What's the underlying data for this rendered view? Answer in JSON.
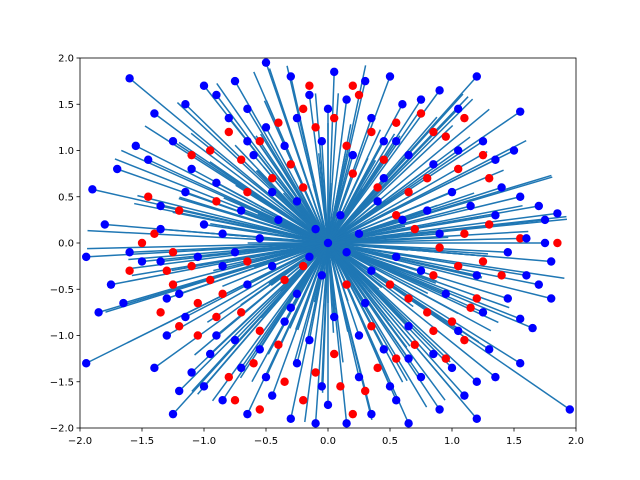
{
  "chart_data": {
    "type": "scatter",
    "title": "",
    "xlabel": "",
    "ylabel": "",
    "xlim": [
      -2.0,
      2.0
    ],
    "ylim": [
      -2.0,
      2.0
    ],
    "grid": false,
    "legend": "none",
    "xticks": [
      "−2.0",
      "−1.5",
      "−1.0",
      "−0.5",
      "0.0",
      "0.5",
      "1.0",
      "1.5",
      "2.0"
    ],
    "yticks": [
      "−2.0",
      "−1.5",
      "−1.0",
      "−0.5",
      "0.0",
      "0.5",
      "1.0",
      "1.5",
      "2.0"
    ],
    "colors": {
      "line": "#1f77b4",
      "red": "#ff0000",
      "blue": "#0000ff",
      "axes": "#000000"
    },
    "red_points": [
      [
        -1.1,
        0.95
      ],
      [
        -0.95,
        1.0
      ],
      [
        -0.8,
        1.2
      ],
      [
        -0.7,
        0.9
      ],
      [
        -0.55,
        1.1
      ],
      [
        -0.4,
        1.3
      ],
      [
        -0.3,
        0.85
      ],
      [
        -0.2,
        1.45
      ],
      [
        -0.1,
        1.25
      ],
      [
        0.05,
        1.35
      ],
      [
        0.15,
        1.05
      ],
      [
        0.25,
        1.6
      ],
      [
        0.35,
        1.2
      ],
      [
        0.45,
        0.9
      ],
      [
        0.55,
        1.3
      ],
      [
        0.75,
        1.4
      ],
      [
        0.85,
        1.2
      ],
      [
        0.95,
        1.15
      ],
      [
        1.1,
        1.35
      ],
      [
        1.25,
        0.95
      ],
      [
        1.3,
        0.7
      ],
      [
        1.05,
        0.8
      ],
      [
        0.8,
        0.7
      ],
      [
        0.65,
        0.55
      ],
      [
        0.4,
        0.6
      ],
      [
        0.2,
        0.75
      ],
      [
        -0.2,
        0.6
      ],
      [
        -0.45,
        0.7
      ],
      [
        -0.65,
        0.55
      ],
      [
        -0.9,
        0.45
      ],
      [
        -1.2,
        0.35
      ],
      [
        -1.4,
        0.1
      ],
      [
        -1.25,
        -0.1
      ],
      [
        -1.1,
        -0.25
      ],
      [
        -0.95,
        -0.4
      ],
      [
        -0.85,
        -0.55
      ],
      [
        -1.05,
        -0.65
      ],
      [
        -1.25,
        -0.45
      ],
      [
        -1.35,
        -0.75
      ],
      [
        -1.2,
        -0.9
      ],
      [
        -1.05,
        -1.0
      ],
      [
        -0.9,
        -0.8
      ],
      [
        -0.7,
        -0.75
      ],
      [
        -0.55,
        -0.95
      ],
      [
        -0.4,
        -1.1
      ],
      [
        -0.6,
        -1.3
      ],
      [
        -0.8,
        -1.45
      ],
      [
        -0.75,
        -1.7
      ],
      [
        -0.55,
        -1.8
      ],
      [
        -0.35,
        -1.5
      ],
      [
        -0.2,
        -1.7
      ],
      [
        -0.1,
        -1.4
      ],
      [
        0.05,
        -1.2
      ],
      [
        0.1,
        -1.55
      ],
      [
        0.2,
        -1.85
      ],
      [
        0.3,
        -1.6
      ],
      [
        0.4,
        -1.35
      ],
      [
        0.55,
        -1.25
      ],
      [
        0.7,
        -1.1
      ],
      [
        0.85,
        -0.95
      ],
      [
        1.0,
        -0.85
      ],
      [
        1.15,
        -0.7
      ],
      [
        1.1,
        -1.05
      ],
      [
        0.95,
        -1.25
      ],
      [
        0.8,
        -0.75
      ],
      [
        0.65,
        -0.6
      ],
      [
        0.5,
        -0.45
      ],
      [
        0.85,
        -0.35
      ],
      [
        1.05,
        -0.25
      ],
      [
        1.25,
        -0.2
      ],
      [
        1.4,
        -0.35
      ],
      [
        1.55,
        0.05
      ],
      [
        1.3,
        0.2
      ],
      [
        1.1,
        0.1
      ],
      [
        0.9,
        -0.05
      ],
      [
        0.7,
        0.15
      ],
      [
        0.55,
        0.3
      ],
      [
        1.85,
        0.0
      ],
      [
        -1.5,
        0.0
      ],
      [
        -1.6,
        -0.3
      ],
      [
        -1.45,
        0.5
      ],
      [
        -0.2,
        -0.25
      ],
      [
        0.15,
        -0.45
      ],
      [
        -0.15,
        1.7
      ],
      [
        0.2,
        1.7
      ],
      [
        -0.35,
        -0.4
      ],
      [
        -0.65,
        -0.2
      ],
      [
        1.2,
        -0.6
      ],
      [
        -1.3,
        -0.3
      ],
      [
        0.35,
        -0.9
      ]
    ],
    "blue_points": [
      [
        -1.6,
        1.78
      ],
      [
        -1.55,
        1.05
      ],
      [
        -1.9,
        0.58
      ],
      [
        -1.95,
        -0.15
      ],
      [
        -1.85,
        -0.75
      ],
      [
        -1.95,
        -1.3
      ],
      [
        -1.7,
        0.8
      ],
      [
        -1.8,
        0.2
      ],
      [
        -1.75,
        -0.45
      ],
      [
        -1.65,
        -0.65
      ],
      [
        -1.45,
        0.9
      ],
      [
        -1.4,
        1.4
      ],
      [
        -1.35,
        0.4
      ],
      [
        -1.3,
        -1.0
      ],
      [
        -1.25,
        -1.85
      ],
      [
        -1.1,
        -1.4
      ],
      [
        -1.0,
        1.7
      ],
      [
        -0.9,
        1.6
      ],
      [
        -0.75,
        1.75
      ],
      [
        -0.65,
        1.45
      ],
      [
        -0.5,
        1.95
      ],
      [
        -0.3,
        1.8
      ],
      [
        -0.15,
        1.6
      ],
      [
        0.05,
        1.85
      ],
      [
        0.15,
        1.55
      ],
      [
        0.3,
        1.75
      ],
      [
        0.5,
        1.8
      ],
      [
        0.6,
        1.5
      ],
      [
        0.75,
        1.55
      ],
      [
        0.9,
        1.65
      ],
      [
        1.05,
        1.45
      ],
      [
        1.2,
        1.8
      ],
      [
        1.25,
        1.1
      ],
      [
        1.35,
        0.9
      ],
      [
        1.5,
        1.0
      ],
      [
        1.55,
        1.42
      ],
      [
        1.55,
        0.5
      ],
      [
        1.7,
        0.4
      ],
      [
        1.85,
        0.32
      ],
      [
        1.6,
        0.05
      ],
      [
        1.75,
        0.0
      ],
      [
        1.8,
        -0.2
      ],
      [
        1.7,
        -0.45
      ],
      [
        1.8,
        -0.6
      ],
      [
        1.55,
        -0.82
      ],
      [
        1.65,
        -0.92
      ],
      [
        1.55,
        -1.3
      ],
      [
        1.95,
        -1.8
      ],
      [
        1.35,
        -1.45
      ],
      [
        1.2,
        -1.5
      ],
      [
        1.1,
        -1.65
      ],
      [
        1.2,
        -1.9
      ],
      [
        0.9,
        -1.8
      ],
      [
        0.65,
        -1.95
      ],
      [
        0.55,
        -1.7
      ],
      [
        0.35,
        -1.85
      ],
      [
        0.15,
        -1.95
      ],
      [
        0.0,
        -1.75
      ],
      [
        -0.1,
        -1.95
      ],
      [
        -0.3,
        -1.9
      ],
      [
        -0.45,
        -1.65
      ],
      [
        -0.65,
        -1.85
      ],
      [
        -0.85,
        -1.7
      ],
      [
        -1.0,
        -1.55
      ],
      [
        -1.2,
        -1.6
      ],
      [
        -1.4,
        -1.35
      ],
      [
        -1.5,
        -0.2
      ],
      [
        -1.35,
        0.15
      ],
      [
        -1.15,
        0.55
      ],
      [
        -1.0,
        0.2
      ],
      [
        -0.85,
        0.1
      ],
      [
        -0.7,
        0.35
      ],
      [
        -0.55,
        0.05
      ],
      [
        -0.4,
        0.25
      ],
      [
        -0.25,
        0.45
      ],
      [
        -0.1,
        0.15
      ],
      [
        0.1,
        0.3
      ],
      [
        0.25,
        0.1
      ],
      [
        0.4,
        0.45
      ],
      [
        0.6,
        0.25
      ],
      [
        0.8,
        0.35
      ],
      [
        1.0,
        0.55
      ],
      [
        1.15,
        0.4
      ],
      [
        1.35,
        0.3
      ],
      [
        1.45,
        -0.1
      ],
      [
        1.2,
        -0.35
      ],
      [
        0.95,
        -0.55
      ],
      [
        0.75,
        -0.3
      ],
      [
        0.55,
        -0.15
      ],
      [
        0.35,
        -0.3
      ],
      [
        0.15,
        -0.1
      ],
      [
        -0.05,
        -0.35
      ],
      [
        -0.25,
        -0.55
      ],
      [
        -0.45,
        -0.25
      ],
      [
        -0.65,
        -0.45
      ],
      [
        -0.85,
        -0.25
      ],
      [
        -1.05,
        -0.15
      ],
      [
        -1.2,
        -0.55
      ],
      [
        -0.95,
        -1.2
      ],
      [
        -0.75,
        -1.05
      ],
      [
        -0.55,
        -1.15
      ],
      [
        -0.35,
        -0.85
      ],
      [
        -0.15,
        -1.05
      ],
      [
        0.05,
        -0.8
      ],
      [
        0.25,
        -1.0
      ],
      [
        0.45,
        -1.15
      ],
      [
        0.65,
        -0.9
      ],
      [
        0.85,
        -1.2
      ],
      [
        1.05,
        -0.95
      ],
      [
        1.25,
        -0.75
      ],
      [
        1.3,
        -1.15
      ],
      [
        1.0,
        -1.35
      ],
      [
        0.75,
        -1.45
      ],
      [
        0.5,
        -1.55
      ],
      [
        0.25,
        -1.45
      ],
      [
        -0.05,
        -1.55
      ],
      [
        -0.25,
        -1.3
      ],
      [
        -0.5,
        -1.45
      ],
      [
        -0.7,
        -1.35
      ],
      [
        -0.9,
        -1.0
      ],
      [
        -1.15,
        -0.8
      ],
      [
        -1.3,
        -0.6
      ],
      [
        -1.1,
        0.8
      ],
      [
        -0.9,
        0.65
      ],
      [
        -0.6,
        0.95
      ],
      [
        -0.35,
        1.05
      ],
      [
        -0.05,
        1.1
      ],
      [
        0.2,
        0.95
      ],
      [
        0.45,
        1.1
      ],
      [
        0.65,
        0.95
      ],
      [
        0.85,
        0.85
      ],
      [
        1.05,
        1.0
      ],
      [
        -0.8,
        1.35
      ],
      [
        -0.5,
        1.25
      ],
      [
        -0.25,
        1.35
      ],
      [
        0.0,
        1.45
      ],
      [
        0.35,
        1.35
      ],
      [
        0.55,
        1.1
      ],
      [
        -1.25,
        1.1
      ],
      [
        -1.35,
        -0.2
      ],
      [
        1.4,
        0.6
      ],
      [
        1.6,
        -0.35
      ],
      [
        0.0,
        0.0
      ],
      [
        -0.15,
        -0.15
      ],
      [
        0.45,
        0.7
      ],
      [
        -0.45,
        0.55
      ],
      [
        -0.3,
        -0.7
      ],
      [
        0.3,
        -0.65
      ],
      [
        0.9,
        0.1
      ],
      [
        -0.75,
        -0.1
      ],
      [
        1.75,
        0.25
      ],
      [
        -1.6,
        -0.1
      ],
      [
        1.45,
        -0.6
      ],
      [
        -1.15,
        1.5
      ],
      [
        0.65,
        -1.25
      ],
      [
        -0.65,
        1.1
      ]
    ]
  }
}
